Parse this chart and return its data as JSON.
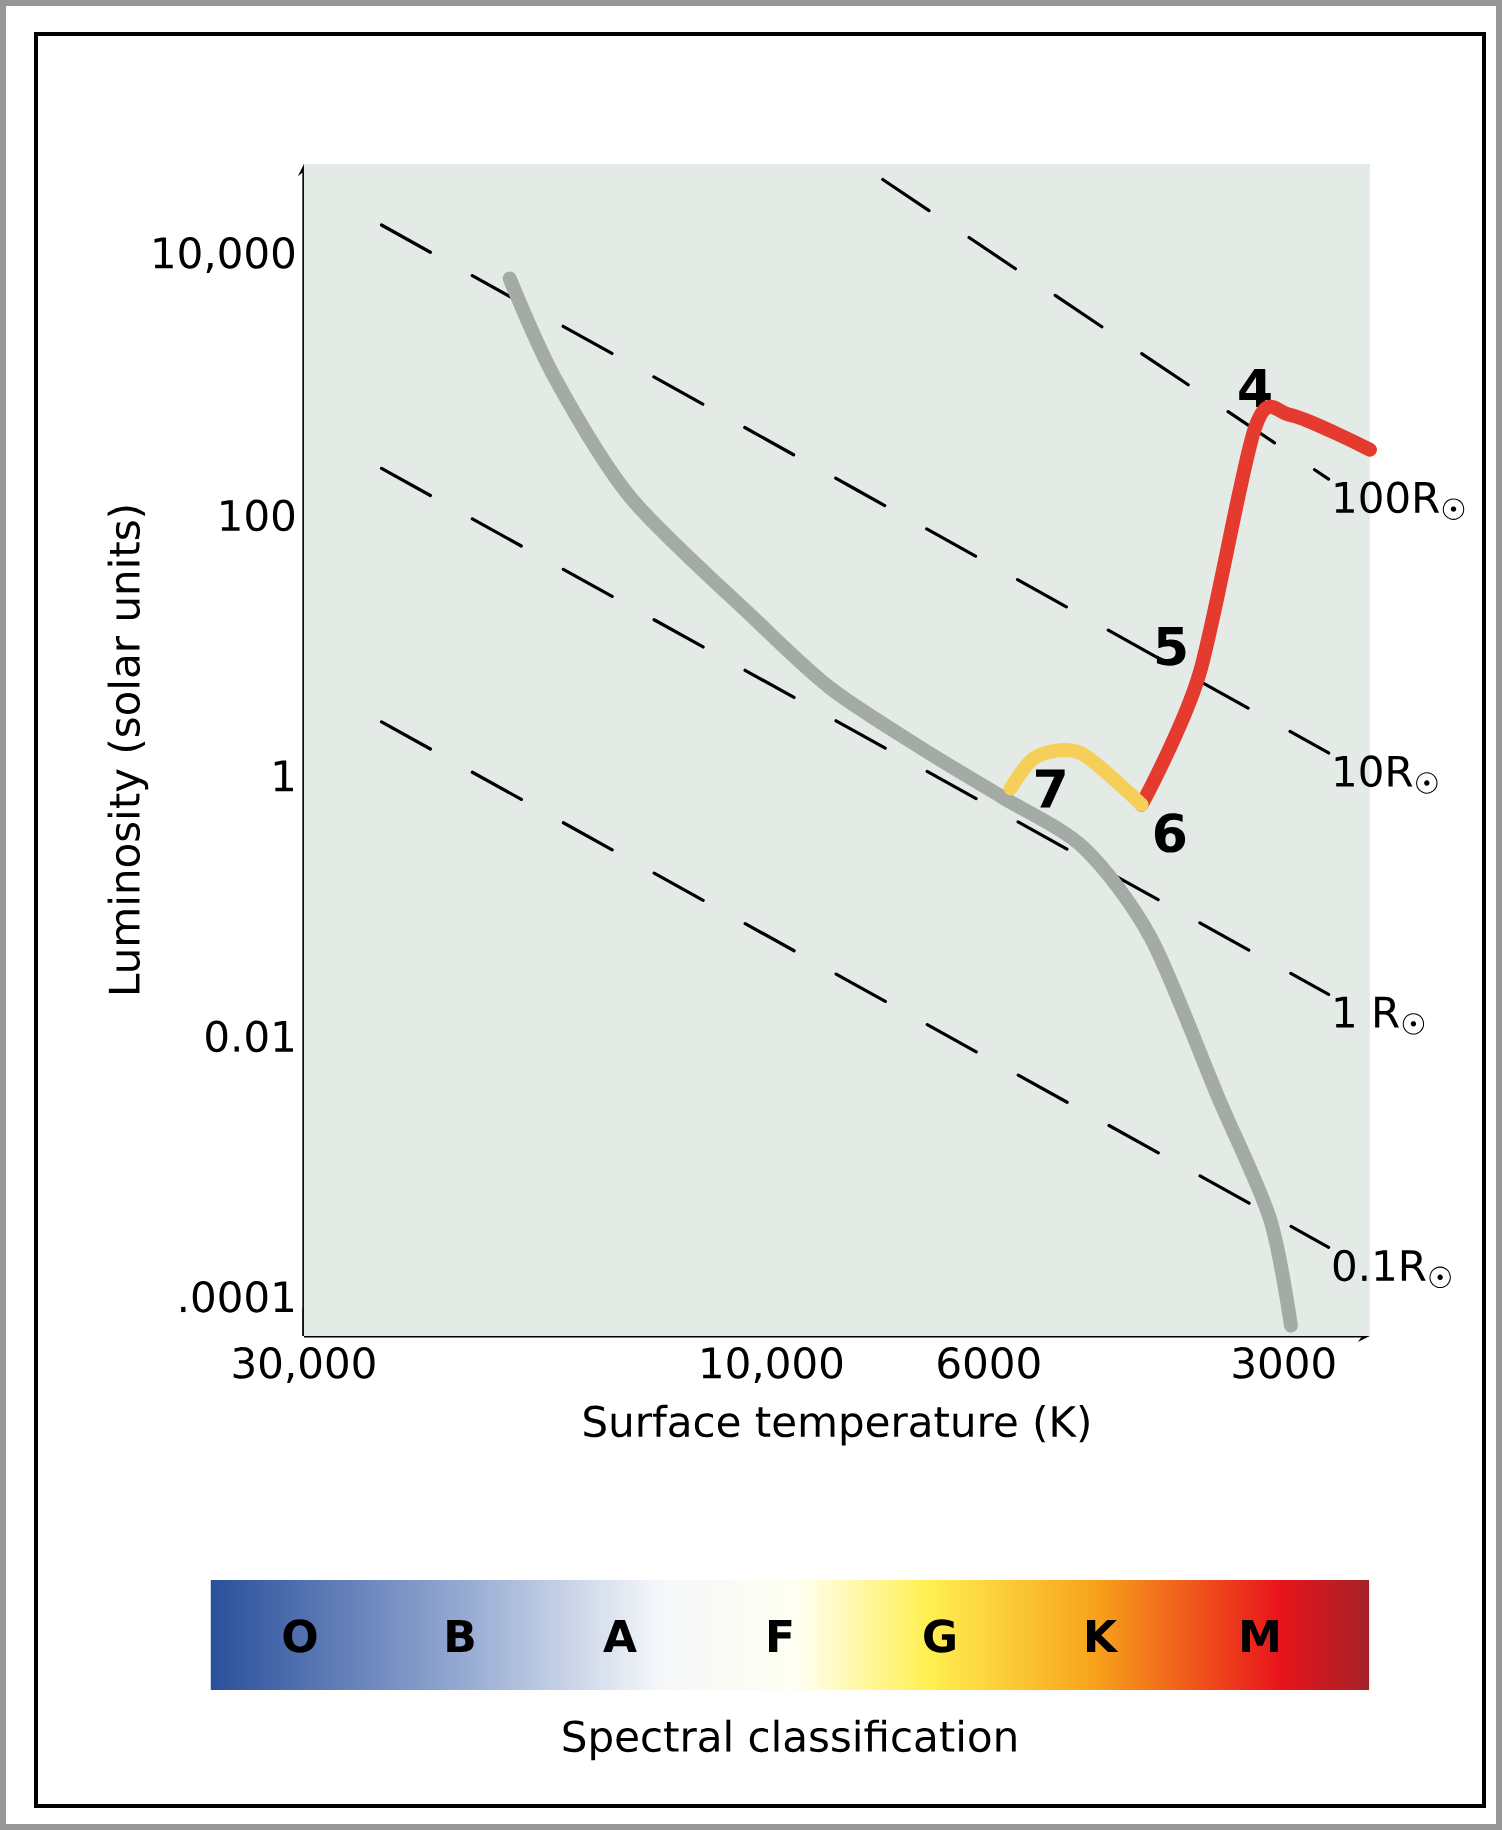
{
  "chart_data": {
    "type": "line",
    "xlabel": "Surface temperature (K)",
    "ylabel": "Luminosity (solar units)",
    "log": "xy",
    "xlim": [
      30000,
      2450
    ],
    "ylim": [
      5e-05,
      50000
    ],
    "xticks": [
      {
        "value": 30000,
        "label": "30,000"
      },
      {
        "value": 10000,
        "label": "10,000"
      },
      6000,
      3000
    ],
    "yticks": [
      {
        "value": 0.0001,
        "label": ".0001"
      },
      0.01,
      1,
      100,
      {
        "value": 10000,
        "label": "10,000"
      }
    ],
    "series": [
      {
        "name": "100R$_{☉}$",
        "color": "#000000",
        "line_style": "dashed",
        "x": [
          7700,
          2700
        ],
        "values": [
          38000,
          190
        ]
      },
      {
        "name": "10R$_{☉}$",
        "color": "#000000",
        "line_style": "dashed",
        "x": [
          25000,
          2700
        ],
        "values": [
          17000,
          1.5
        ]
      },
      {
        "name": "1 R$_{☉}$",
        "color": "#000000",
        "line_style": "dashed",
        "x": [
          25000,
          2700
        ],
        "values": [
          230,
          0.021
        ]
      },
      {
        "name": "0.1R$_{☉}$",
        "color": "#000000",
        "line_style": "dashed",
        "x": [
          25000,
          2700
        ],
        "values": [
          2.6,
          0.00024
        ]
      },
      {
        "color": "#a4aba6",
        "line_style": "solid",
        "x": [
          18500,
          16600,
          13900,
          10400,
          8700,
          7000,
          5800,
          4800,
          4100,
          3500,
          3100,
          2950
        ],
        "values": [
          6600,
          1100,
          135,
          16,
          4.7,
          1.6,
          0.68,
          0.28,
          0.057,
          0.0034,
          0.0004,
          6e-05
        ]
      },
      {
        "color": "#e53a2e",
        "line_style": "solid",
        "x": [
          2450,
          2950,
          3210,
          3660,
          4190
        ],
        "values": [
          320,
          590,
          470,
          6,
          0.6
        ]
      },
      {
        "color": "#f6cf5a",
        "line_style": "solid",
        "x": [
          4190,
          4840,
          5370,
          5700
        ],
        "values": [
          0.6,
          1.5,
          1.4,
          0.8
        ]
      }
    ],
    "annotations": [
      {
        "text": "4",
        "x": 3210,
        "y": 470
      },
      {
        "text": "5",
        "x": 3660,
        "y": 6
      },
      {
        "text": "6",
        "x": 4190,
        "y": 0.6
      },
      {
        "text": "7",
        "x": 5700,
        "y": 0.8
      },
      "O",
      "B",
      "A",
      "F",
      "G",
      "K",
      "M",
      "Spectral classification"
    ]
  }
}
